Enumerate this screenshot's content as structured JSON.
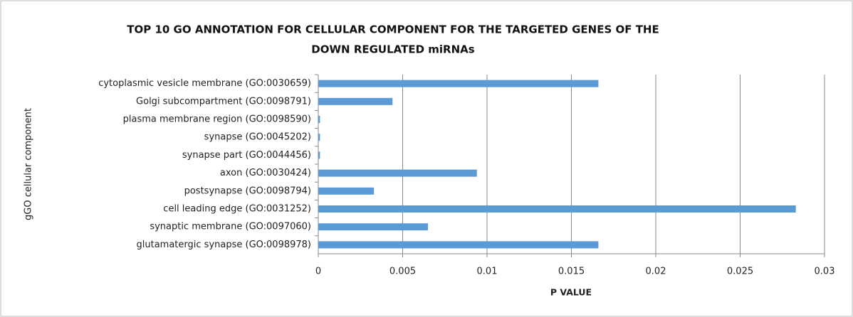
{
  "chart_data": {
    "type": "hbar",
    "title": "TOP 10 GO ANNOTATION FOR CELLULAR COMPONENT FOR THE TARGETED GENES OF THE",
    "subtitle": "DOWN REGULATED miRNAs",
    "x_label": "P VALUE",
    "y_label": "gGO cellular component",
    "categories": [
      "cytoplasmic vesicle membrane (GO:0030659)",
      "Golgi subcompartment (GO:0098791)",
      "plasma membrane region (GO:0098590)",
      "synapse (GO:0045202)",
      "synapse part (GO:0044456)",
      "axon (GO:0030424)",
      "postsynapse (GO:0098794)",
      "cell leading edge (GO:0031252)",
      "synaptic membrane (GO:0097060)",
      "glutamatergic synapse (GO:0098978)"
    ],
    "values": [
      0.0166,
      0.0044,
      0.0001,
      0.0001,
      0.0001,
      0.0094,
      0.0033,
      0.0283,
      0.0065,
      0.0166
    ],
    "color": "#5b9bd5",
    "xlim": [
      0,
      0.03
    ],
    "xticks": [
      0,
      0.005,
      0.01,
      0.015,
      0.02,
      0.025,
      0.03
    ],
    "grid": true
  }
}
